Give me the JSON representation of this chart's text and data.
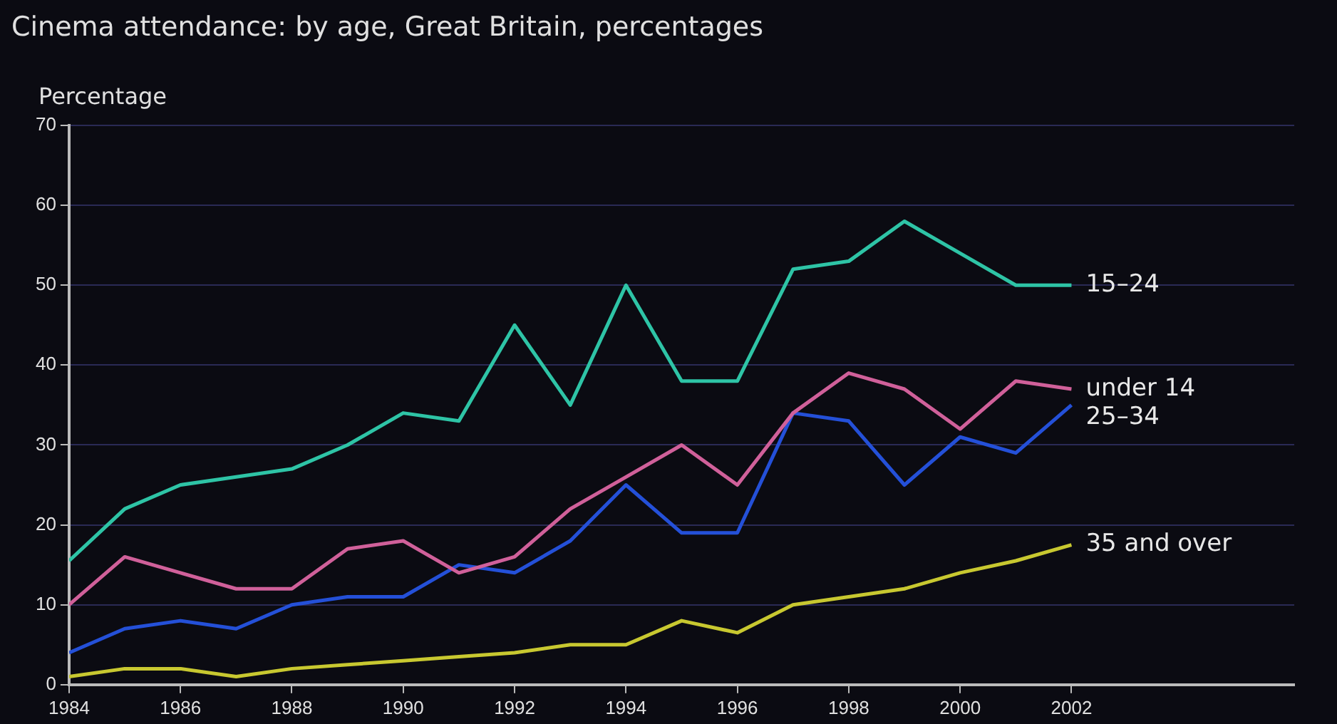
{
  "chart_data": {
    "type": "line",
    "title": "Cinema attendance: by age, Great Britain, percentages",
    "ylabel": "Percentage",
    "x": [
      1984,
      1985,
      1986,
      1987,
      1988,
      1989,
      1990,
      1991,
      1992,
      1993,
      1994,
      1995,
      1996,
      1997,
      1998,
      1999,
      2000,
      2001,
      2002
    ],
    "series": [
      {
        "name": "15–24",
        "color": "#2ec4a6",
        "values": [
          15.5,
          22,
          25,
          26,
          27,
          30,
          34,
          33,
          45,
          35,
          50,
          38,
          38,
          52,
          53,
          58,
          54,
          50,
          50
        ]
      },
      {
        "name": "under 14",
        "color": "#d0609a",
        "values": [
          10,
          16,
          14,
          12,
          12,
          17,
          18,
          14,
          16,
          22,
          26,
          30,
          25,
          34,
          39,
          37,
          32,
          38,
          37
        ]
      },
      {
        "name": "25–34",
        "color": "#2450d8",
        "values": [
          4,
          7,
          8,
          7,
          10,
          11,
          11,
          15,
          14,
          18,
          25,
          19,
          19,
          34,
          33,
          25,
          31,
          29,
          35
        ]
      },
      {
        "name": "35 and over",
        "color": "#c8c830",
        "values": [
          1,
          2,
          2,
          1,
          2,
          2.5,
          3,
          3.5,
          4,
          5,
          5,
          8,
          6.5,
          10,
          11,
          12,
          14,
          15.5,
          17.5
        ]
      }
    ],
    "xlim": [
      1984,
      2006
    ],
    "xticks": [
      1984,
      1986,
      1988,
      1990,
      1992,
      1994,
      1996,
      1998,
      2000,
      2002
    ],
    "ylim": [
      0,
      70
    ],
    "yticks": [
      0,
      10,
      20,
      30,
      40,
      50,
      60,
      70
    ],
    "grid": "y",
    "marker": "none",
    "line_style": "solid"
  }
}
